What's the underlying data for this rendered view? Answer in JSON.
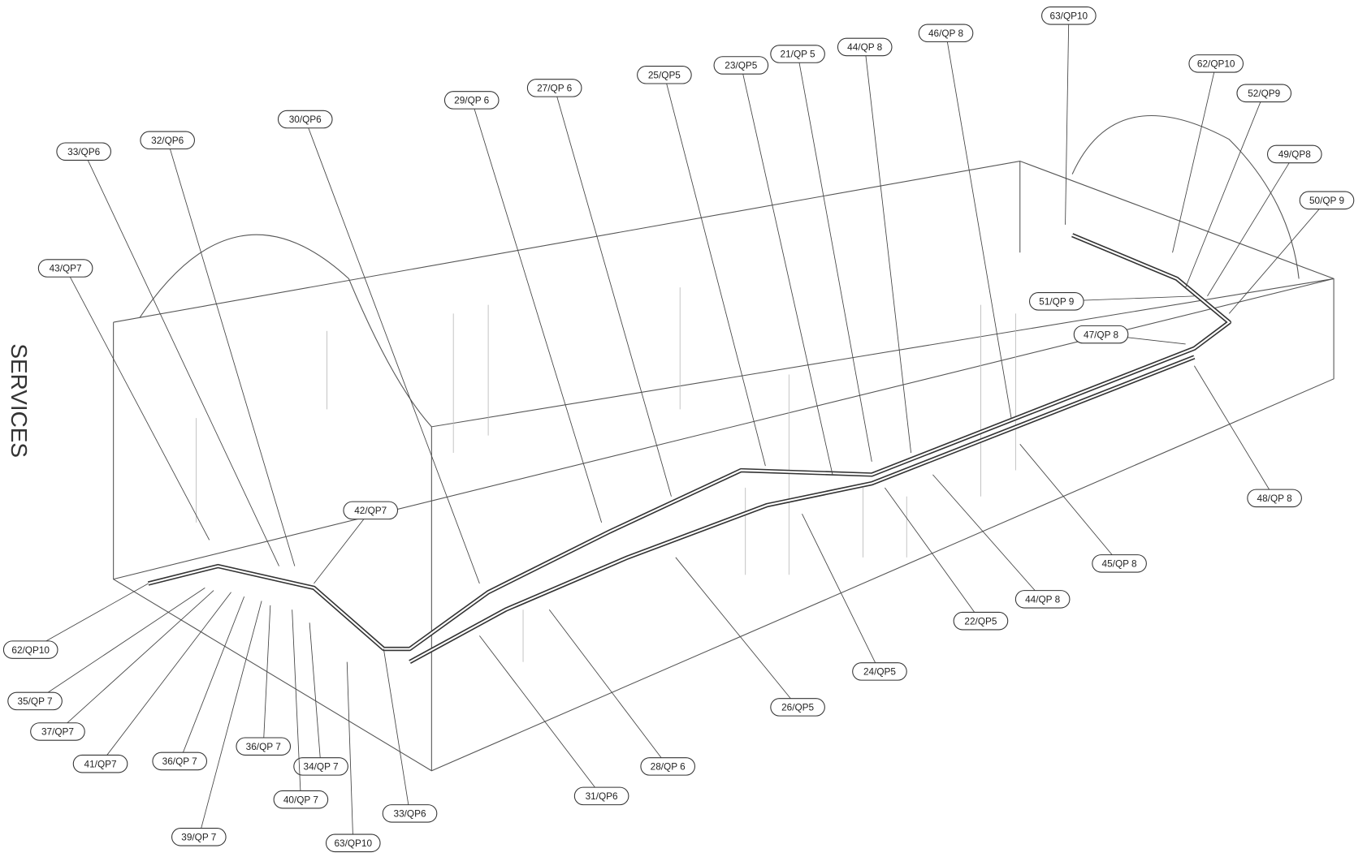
{
  "side_label": "SERVICES",
  "callouts": [
    "63/QP10",
    "46/QP 8",
    "44/QP 8",
    "21/QP 5",
    "23/QP5",
    "25/QP5",
    "27/QP 6",
    "29/QP 6",
    "30/QP6",
    "32/QP6",
    "33/QP6",
    "43/QP7",
    "62/QP10",
    "52/QP9",
    "49/QP8",
    "50/QP 9",
    "51/QP 9",
    "47/QP 8",
    "48/QP 8",
    "45/QP 8",
    "44/QP 8",
    "22/QP5",
    "24/QP5",
    "26/QP5",
    "28/QP 6",
    "31/QP6",
    "42/QP7",
    "62/QP10",
    "35/QP 7",
    "37/QP7",
    "41/QP7",
    "36/QP 7",
    "36/QP 7",
    "34/QP 7",
    "40/QP 7",
    "39/QP 7",
    "63/QP10",
    "33/QP6"
  ]
}
